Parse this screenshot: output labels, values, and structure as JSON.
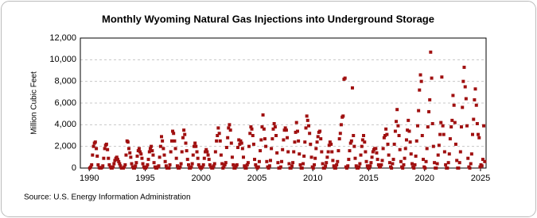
{
  "chart_data": {
    "type": "scatter",
    "title": "Monthly Wyoming Natural Gas Injections into Underground Storage",
    "y_label": "Million Cubic Feet",
    "source": "Source: U.S. Energy Information Administration",
    "color": "#a01010",
    "grid": true,
    "xlim": [
      1989.2,
      2025.5
    ],
    "xticks": [
      1990,
      1995,
      2000,
      2005,
      2010,
      2015,
      2020,
      2025
    ],
    "ylim": [
      0,
      12000
    ],
    "yticks": [
      0,
      {
        "value": 2000,
        "label": "2,000"
      },
      {
        "value": 4000,
        "label": "4,000"
      },
      {
        "value": 6000,
        "label": "6,000"
      },
      {
        "value": 8000,
        "label": "8,000"
      },
      {
        "value": 10000,
        "label": "10,000"
      },
      {
        "value": 12000,
        "label": "12,000"
      }
    ],
    "x": [
      1990.04,
      1990.13,
      1990.21,
      1990.29,
      1990.38,
      1990.46,
      1990.54,
      1990.63,
      1990.71,
      1990.79,
      1990.88,
      1990.96,
      1991.04,
      1991.13,
      1991.21,
      1991.29,
      1991.38,
      1991.46,
      1991.54,
      1991.63,
      1991.71,
      1991.79,
      1991.88,
      1991.96,
      1992.04,
      1992.13,
      1992.21,
      1992.29,
      1992.38,
      1992.46,
      1992.54,
      1992.63,
      1992.71,
      1992.79,
      1992.88,
      1992.96,
      1993.04,
      1993.13,
      1993.21,
      1993.29,
      1993.38,
      1993.46,
      1993.54,
      1993.63,
      1993.71,
      1993.79,
      1993.88,
      1993.96,
      1994.04,
      1994.13,
      1994.21,
      1994.29,
      1994.38,
      1994.46,
      1994.54,
      1994.63,
      1994.71,
      1994.79,
      1994.88,
      1994.96,
      1995.04,
      1995.13,
      1995.21,
      1995.29,
      1995.38,
      1995.46,
      1995.54,
      1995.63,
      1995.71,
      1995.79,
      1995.88,
      1995.96,
      1996.04,
      1996.13,
      1996.21,
      1996.29,
      1996.38,
      1996.46,
      1996.54,
      1996.63,
      1996.71,
      1996.79,
      1996.88,
      1996.96,
      1997.04,
      1997.13,
      1997.21,
      1997.29,
      1997.38,
      1997.46,
      1997.54,
      1997.63,
      1997.71,
      1997.79,
      1997.88,
      1997.96,
      1998.04,
      1998.13,
      1998.21,
      1998.29,
      1998.38,
      1998.46,
      1998.54,
      1998.63,
      1998.71,
      1998.79,
      1998.88,
      1998.96,
      1999.04,
      1999.13,
      1999.21,
      1999.29,
      1999.38,
      1999.46,
      1999.54,
      1999.63,
      1999.71,
      1999.79,
      1999.88,
      1999.96,
      2000.04,
      2000.13,
      2000.21,
      2000.29,
      2000.38,
      2000.46,
      2000.54,
      2000.63,
      2000.71,
      2000.79,
      2000.88,
      2000.96,
      2001.04,
      2001.13,
      2001.21,
      2001.29,
      2001.38,
      2001.46,
      2001.54,
      2001.63,
      2001.71,
      2001.79,
      2001.88,
      2001.96,
      2002.04,
      2002.13,
      2002.21,
      2002.29,
      2002.38,
      2002.46,
      2002.54,
      2002.63,
      2002.71,
      2002.79,
      2002.88,
      2002.96,
      2003.04,
      2003.13,
      2003.21,
      2003.29,
      2003.38,
      2003.46,
      2003.54,
      2003.63,
      2003.71,
      2003.79,
      2003.88,
      2003.96,
      2004.04,
      2004.13,
      2004.21,
      2004.29,
      2004.38,
      2004.46,
      2004.54,
      2004.63,
      2004.71,
      2004.79,
      2004.88,
      2004.96,
      2005.04,
      2005.13,
      2005.21,
      2005.29,
      2005.38,
      2005.46,
      2005.54,
      2005.63,
      2005.71,
      2005.79,
      2005.88,
      2005.96,
      2006.04,
      2006.13,
      2006.21,
      2006.29,
      2006.38,
      2006.46,
      2006.54,
      2006.63,
      2006.71,
      2006.79,
      2006.88,
      2006.96,
      2007.04,
      2007.13,
      2007.21,
      2007.29,
      2007.38,
      2007.46,
      2007.54,
      2007.63,
      2007.71,
      2007.79,
      2007.88,
      2007.96,
      2008.04,
      2008.13,
      2008.21,
      2008.29,
      2008.38,
      2008.46,
      2008.54,
      2008.63,
      2008.71,
      2008.79,
      2008.88,
      2008.96,
      2009.04,
      2009.13,
      2009.21,
      2009.29,
      2009.38,
      2009.46,
      2009.54,
      2009.63,
      2009.71,
      2009.79,
      2009.88,
      2009.96,
      2010.04,
      2010.13,
      2010.21,
      2010.29,
      2010.38,
      2010.46,
      2010.54,
      2010.63,
      2010.71,
      2010.79,
      2010.88,
      2010.96,
      2011.04,
      2011.13,
      2011.21,
      2011.29,
      2011.38,
      2011.46,
      2011.54,
      2011.63,
      2011.71,
      2011.79,
      2011.88,
      2011.96,
      2012.04,
      2012.13,
      2012.21,
      2012.29,
      2012.38,
      2012.46,
      2012.54,
      2012.63,
      2012.71,
      2012.79,
      2012.88,
      2012.96,
      2013.04,
      2013.13,
      2013.21,
      2013.29,
      2013.38,
      2013.46,
      2013.54,
      2013.63,
      2013.71,
      2013.79,
      2013.88,
      2013.96,
      2014.04,
      2014.13,
      2014.21,
      2014.29,
      2014.38,
      2014.46,
      2014.54,
      2014.63,
      2014.71,
      2014.79,
      2014.88,
      2014.96,
      2015.04,
      2015.13,
      2015.21,
      2015.29,
      2015.38,
      2015.46,
      2015.54,
      2015.63,
      2015.71,
      2015.79,
      2015.88,
      2015.96,
      2016.04,
      2016.13,
      2016.21,
      2016.29,
      2016.38,
      2016.46,
      2016.54,
      2016.63,
      2016.71,
      2016.79,
      2016.88,
      2016.96,
      2017.04,
      2017.13,
      2017.21,
      2017.29,
      2017.38,
      2017.46,
      2017.54,
      2017.63,
      2017.71,
      2017.79,
      2017.88,
      2017.96,
      2018.04,
      2018.13,
      2018.21,
      2018.29,
      2018.38,
      2018.46,
      2018.54,
      2018.63,
      2018.71,
      2018.79,
      2018.88,
      2018.96,
      2019.04,
      2019.13,
      2019.21,
      2019.29,
      2019.38,
      2019.46,
      2019.54,
      2019.63,
      2019.71,
      2019.79,
      2019.88,
      2019.96,
      2020.04,
      2020.13,
      2020.21,
      2020.29,
      2020.38,
      2020.46,
      2020.54,
      2020.63,
      2020.71,
      2020.79,
      2020.88,
      2020.96,
      2021.04,
      2021.13,
      2021.21,
      2021.29,
      2021.38,
      2021.46,
      2021.54,
      2021.63,
      2021.71,
      2021.79,
      2021.88,
      2021.96,
      2022.04,
      2022.13,
      2022.21,
      2022.29,
      2022.38,
      2022.46,
      2022.54,
      2022.63,
      2022.71,
      2022.79,
      2022.88,
      2022.96,
      2023.04,
      2023.13,
      2023.21,
      2023.29,
      2023.38,
      2023.46,
      2023.54,
      2023.63,
      2023.71,
      2023.79,
      2023.88,
      2023.96,
      2024.04,
      2024.13,
      2024.21,
      2024.29,
      2024.38,
      2024.46,
      2024.54,
      2024.63,
      2024.71,
      2024.79,
      2024.88,
      2024.96,
      2025.04,
      2025.13,
      2025.21,
      2025.29,
      2025.38
    ],
    "values": [
      0,
      100,
      300,
      1200,
      2000,
      2300,
      2400,
      1800,
      1100,
      300,
      50,
      0,
      0,
      50,
      200,
      900,
      1800,
      2100,
      2200,
      1700,
      900,
      300,
      100,
      0,
      0,
      100,
      400,
      700,
      900,
      1000,
      800,
      600,
      400,
      200,
      0,
      0,
      0,
      100,
      300,
      1200,
      2500,
      2400,
      1800,
      1400,
      1000,
      400,
      100,
      0,
      0,
      200,
      500,
      1100,
      1600,
      1800,
      1500,
      1300,
      900,
      400,
      100,
      0,
      0,
      100,
      300,
      800,
      1500,
      1800,
      2000,
      1600,
      1200,
      500,
      100,
      0,
      0,
      100,
      200,
      1000,
      2000,
      2900,
      2500,
      1800,
      1200,
      600,
      200,
      0,
      0,
      0,
      300,
      1500,
      2500,
      3400,
      3200,
      2500,
      1800,
      900,
      200,
      0,
      0,
      100,
      400,
      1500,
      2800,
      3500,
      3100,
      2300,
      1600,
      800,
      300,
      0,
      0,
      100,
      400,
      1200,
      2000,
      2300,
      2000,
      1500,
      900,
      300,
      100,
      0,
      0,
      100,
      300,
      900,
      1500,
      1700,
      1500,
      1200,
      800,
      300,
      100,
      0,
      0,
      200,
      400,
      1500,
      2500,
      3000,
      3700,
      3200,
      2500,
      1200,
      400,
      0,
      100,
      300,
      500,
      1900,
      2800,
      3700,
      4000,
      3500,
      2300,
      1000,
      300,
      0,
      0,
      200,
      300,
      1900,
      2600,
      2200,
      2500,
      2300,
      1800,
      1000,
      200,
      0,
      0,
      300,
      500,
      2000,
      3200,
      3800,
      3600,
      3000,
      2200,
      800,
      300,
      100,
      0,
      100,
      600,
      1600,
      2600,
      3800,
      4900,
      3600,
      2700,
      2000,
      600,
      100,
      0,
      200,
      700,
      1800,
      2700,
      3600,
      4100,
      3800,
      3000,
      1400,
      500,
      0,
      0,
      100,
      600,
      1700,
      2600,
      3500,
      3700,
      3500,
      2800,
      1500,
      400,
      0,
      0,
      200,
      500,
      1500,
      2400,
      3300,
      4200,
      3400,
      2500,
      1300,
      300,
      0,
      0,
      400,
      1100,
      2400,
      3700,
      4800,
      4400,
      3900,
      3200,
      2200,
      1000,
      100,
      0,
      300,
      900,
      1800,
      2400,
      2900,
      3300,
      3400,
      2700,
      1500,
      400,
      0,
      0,
      200,
      500,
      1000,
      1500,
      2100,
      2400,
      2200,
      1500,
      700,
      200,
      0,
      0,
      300,
      600,
      1600,
      2700,
      3200,
      4000,
      4700,
      4800,
      8200,
      8300,
      100,
      0,
      200,
      800,
      1600,
      2300,
      2500,
      7400,
      3000,
      2000,
      900,
      200,
      0,
      0,
      100,
      400,
      1200,
      2000,
      2600,
      3000,
      2400,
      1500,
      600,
      200,
      0,
      0,
      200,
      500,
      1000,
      1500,
      1700,
      1800,
      1800,
      1400,
      800,
      300,
      100,
      100,
      300,
      700,
      1800,
      2800,
      3000,
      3600,
      3100,
      2200,
      1200,
      500,
      100,
      0,
      400,
      800,
      2200,
      3400,
      4300,
      5400,
      3900,
      3000,
      1700,
      600,
      100,
      0,
      300,
      900,
      1800,
      2600,
      3500,
      4400,
      3400,
      2400,
      1300,
      400,
      100,
      0,
      300,
      1100,
      2500,
      3900,
      5300,
      7200,
      8600,
      8000,
      3000,
      800,
      100,
      0,
      600,
      1800,
      3800,
      5200,
      6300,
      10700,
      8300,
      4100,
      2000,
      500,
      0,
      0,
      400,
      1200,
      2100,
      3100,
      4200,
      8400,
      3900,
      3100,
      1500,
      300,
      0,
      0,
      500,
      1300,
      2700,
      3800,
      4400,
      6700,
      5800,
      4200,
      2200,
      700,
      0,
      0,
      500,
      1500,
      3800,
      5600,
      8000,
      9300,
      7500,
      6400,
      3900,
      900,
      100,
      0,
      400,
      1300,
      3100,
      4500,
      6300,
      7300,
      5800,
      4100,
      3100,
      2800,
      100,
      300,
      200,
      800,
      3900,
      600
    ]
  }
}
